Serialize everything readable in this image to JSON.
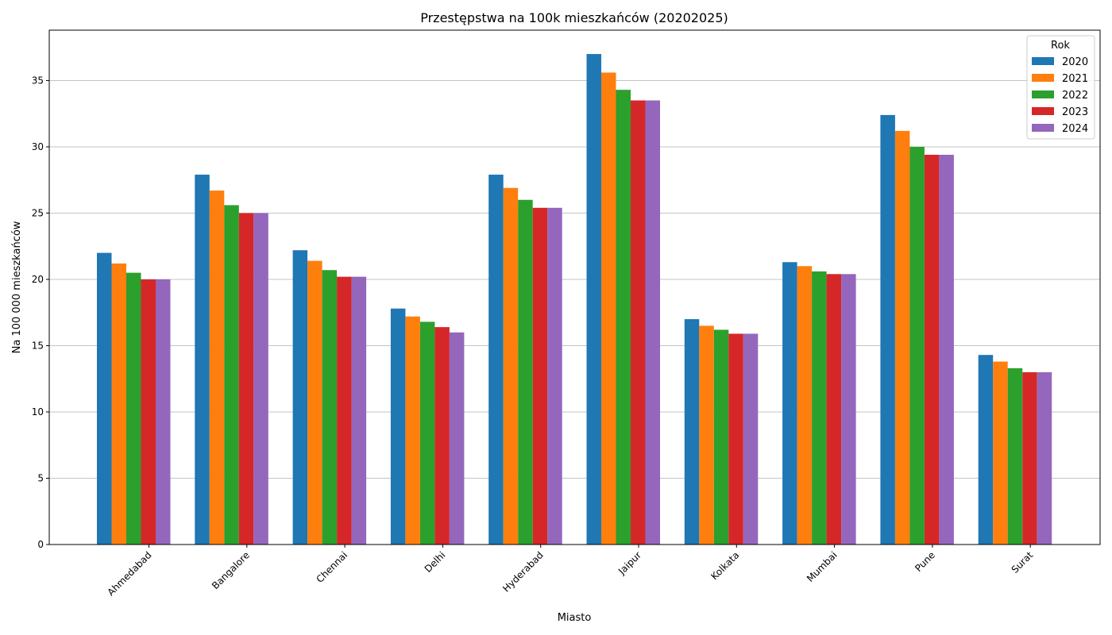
{
  "chart_data": {
    "type": "bar",
    "title": "Przestępstwa na 100k mieszkańców (20202025)",
    "xlabel": "Miasto",
    "ylabel": "Na 100 000 mieszkańców",
    "ylim": [
      0,
      38.8
    ],
    "yticks": [
      0,
      5,
      10,
      15,
      20,
      25,
      30,
      35
    ],
    "grid": "horizontal",
    "legend_title": "Rok",
    "legend_position": "top-right",
    "categories": [
      "Ahmedabad",
      "Bangalore",
      "Chennai",
      "Delhi",
      "Hyderabad",
      "Jaipur",
      "Kolkata",
      "Mumbai",
      "Pune",
      "Surat"
    ],
    "series": [
      {
        "name": "2020",
        "color": "#1f77b4",
        "values": [
          22.0,
          27.9,
          22.2,
          17.8,
          27.9,
          37.0,
          17.0,
          21.3,
          32.4,
          14.3
        ]
      },
      {
        "name": "2021",
        "color": "#ff7f0e",
        "values": [
          21.2,
          26.7,
          21.4,
          17.2,
          26.9,
          35.6,
          16.5,
          21.0,
          31.2,
          13.8
        ]
      },
      {
        "name": "2022",
        "color": "#2ca02c",
        "values": [
          20.5,
          25.6,
          20.7,
          16.8,
          26.0,
          34.3,
          16.2,
          20.6,
          30.0,
          13.3
        ]
      },
      {
        "name": "2023",
        "color": "#d62728",
        "values": [
          20.0,
          25.0,
          20.2,
          16.4,
          25.4,
          33.5,
          15.9,
          20.4,
          29.4,
          13.0
        ]
      },
      {
        "name": "2024",
        "color": "#9467bd",
        "values": [
          20.0,
          25.0,
          20.2,
          16.0,
          25.4,
          33.5,
          15.9,
          20.4,
          29.4,
          13.0
        ]
      }
    ]
  }
}
